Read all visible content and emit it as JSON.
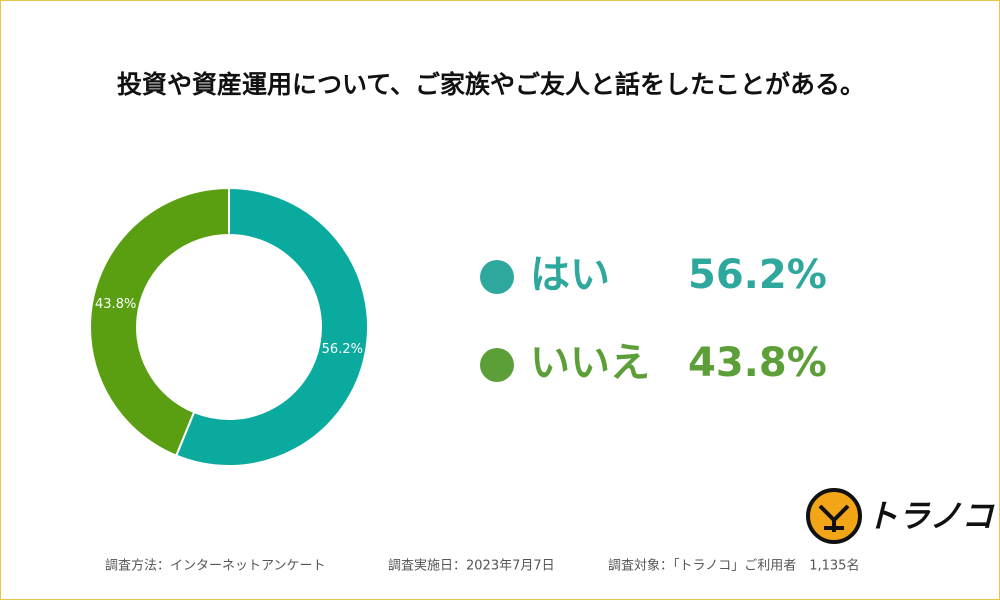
{
  "chart_data": {
    "type": "pie",
    "title": "投資や資産運用について、ご家族やご友人と話をしたことがある。",
    "categories": [
      "はい",
      "いいえ"
    ],
    "values": [
      56.2,
      43.8
    ],
    "value_labels": [
      "56.2%",
      "43.8%"
    ],
    "colors": [
      "#0aab9e",
      "#5a9f12"
    ],
    "legend_colors": [
      "#2ea89c",
      "#5c9e38"
    ],
    "donut": true
  },
  "footer": [
    "調査方法：インターネットアンケート",
    "調査実施日：2023年7月7日",
    "調査対象：「トラノコ」ご利用者　1,135名"
  ],
  "logo": "トラノコ"
}
